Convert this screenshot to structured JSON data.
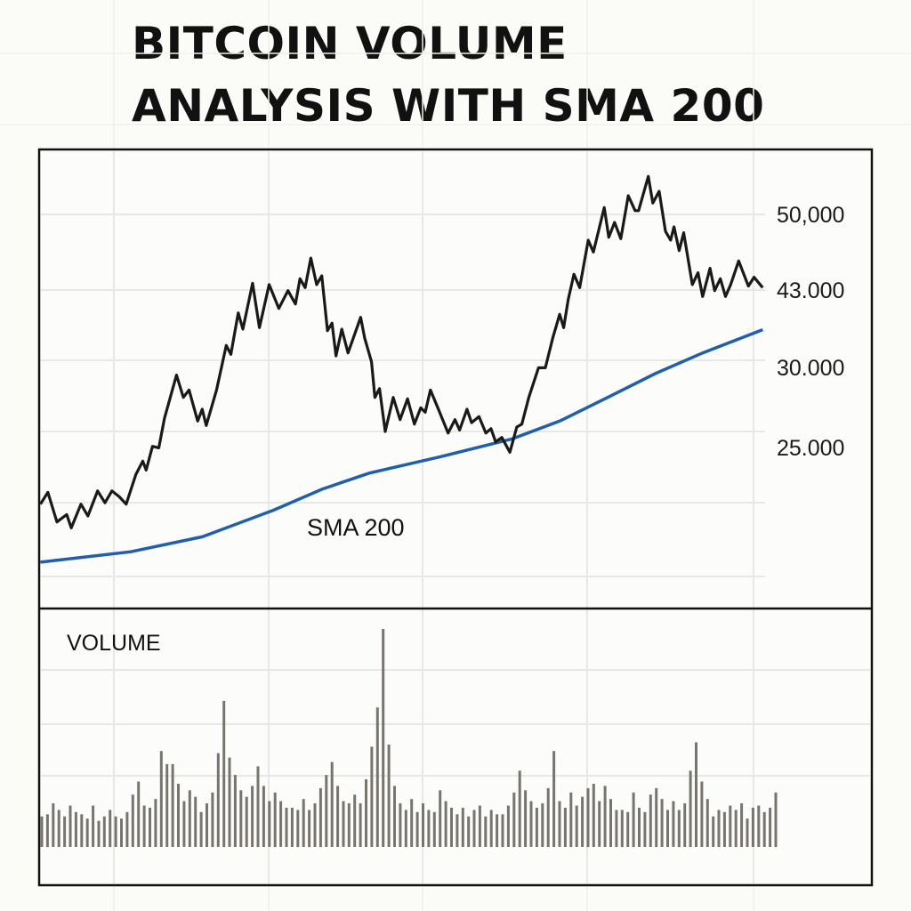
{
  "title_lines": [
    "BITCOIN VOLUME",
    "ANALYSIS WITH SMA 200"
  ],
  "chart_data": [
    {
      "type": "line",
      "panel": "price",
      "y_tick_labels": [
        "50,000",
        "43.000",
        "30.000",
        "25.000"
      ],
      "y_tick_values": [
        50000,
        43000,
        30000,
        25000
      ],
      "grid": true,
      "colors": {
        "price": "#1a1a1a",
        "sma": "#1f5fad"
      },
      "series": [
        {
          "key": "price",
          "x": [
            0,
            1.3,
            2.9,
            4.6,
            5.4,
            7.1,
            8.3,
            10,
            11.3,
            12.5,
            13.8,
            15,
            16.7,
            17.9,
            18.5,
            19.6,
            20.7,
            21.7,
            23.8,
            25,
            26,
            27.5,
            28.3,
            29,
            30.8,
            32.5,
            33.3,
            34.6,
            35.4,
            37.1,
            38.3,
            40,
            41.7,
            43.3,
            44.6,
            45.4,
            46.3,
            47.3,
            48.3,
            49.2,
            50.2,
            51,
            51.7,
            52.7,
            53.8,
            56,
            56.7,
            57.9,
            58.5,
            59.3,
            60.3,
            61.7,
            62.9,
            64.2,
            65.4,
            66.5,
            67.3,
            68.2,
            69.6,
            71.3,
            72.5,
            73.3,
            74.6,
            75.4,
            76.7,
            77.9,
            78.8,
            79.6,
            80.7,
            82.1,
            83.3,
            84.2,
            85.4,
            87.1,
            88.3,
            89.6,
            90.8,
            91.5,
            92.3,
            93.3,
            94.3,
            95.8,
            96.7,
            98.6,
            99.4,
            100.4,
            101.5,
            102.8,
            104,
            104.6,
            106.3,
            107.1,
            108.2,
            109.3,
            110.2,
            110.8,
            111.7,
            112.5,
            114,
            115,
            115.8,
            117.1,
            117.9,
            118.9,
            119.8,
            120.7,
            122.1,
            123.8,
            124.8,
            126.3
          ],
          "y": [
            21460,
            22200,
            20350,
            20810,
            19980,
            21460,
            20720,
            22290,
            21550,
            22290,
            21920,
            21460,
            23310,
            24150,
            23590,
            25070,
            24980,
            26830,
            29520,
            28130,
            28590,
            26650,
            27390,
            26370,
            28590,
            33690,
            32200,
            39160,
            36430,
            43630,
            36680,
            43500,
            39910,
            42900,
            40660,
            44050,
            43220,
            45960,
            43500,
            44320,
            36170,
            37430,
            31940,
            36430,
            32440,
            38410,
            34930,
            30940,
            28130,
            28680,
            26000,
            28130,
            26740,
            28040,
            26460,
            27480,
            27200,
            28590,
            27390,
            25900,
            26740,
            26090,
            27390,
            26550,
            26930,
            25900,
            26180,
            25350,
            25630,
            24700,
            26280,
            26460,
            28130,
            29980,
            29980,
            34930,
            38920,
            36680,
            41400,
            44460,
            43220,
            47610,
            46520,
            50630,
            47880,
            49260,
            47750,
            51730,
            50350,
            50350,
            53520,
            51050,
            52140,
            48440,
            47610,
            48850,
            46650,
            48300,
            43500,
            44600,
            41910,
            45010,
            42900,
            44050,
            41910,
            43500,
            45690,
            43360,
            44190,
            43220
          ]
        },
        {
          "key": "sma",
          "name": "SMA 200",
          "x": [
            0,
            15.8,
            28.3,
            40.8,
            49.2,
            57.5,
            70,
            82.5,
            90.8,
            99.2,
            107.5,
            115.8,
            126.3
          ],
          "y": [
            17840,
            18490,
            19420,
            21090,
            22390,
            23400,
            24430,
            25540,
            26650,
            28130,
            29610,
            32440,
            36330
          ]
        }
      ]
    },
    {
      "type": "bar",
      "panel": "volume",
      "label": "VOLUME",
      "grid": true,
      "color": "#77756e",
      "values": [
        14,
        15,
        20,
        17,
        14,
        19,
        16,
        15,
        13,
        19,
        12,
        14,
        17,
        14,
        13,
        16,
        24,
        30,
        19,
        18,
        22,
        44,
        38,
        38,
        29,
        21,
        26,
        23,
        16,
        20,
        25,
        43,
        67,
        41,
        33,
        26,
        23,
        28,
        37,
        28,
        21,
        25,
        21,
        18,
        18,
        17,
        22,
        17,
        20,
        27,
        33,
        39,
        28,
        21,
        20,
        24,
        20,
        31,
        46,
        64,
        100,
        47,
        28,
        20,
        17,
        22,
        16,
        20,
        17,
        16,
        26,
        21,
        18,
        15,
        18,
        14,
        17,
        19,
        14,
        17,
        15,
        15,
        19,
        25,
        35,
        26,
        21,
        18,
        20,
        27,
        44,
        21,
        18,
        25,
        19,
        23,
        27,
        29,
        21,
        28,
        22,
        17,
        17,
        16,
        25,
        18,
        16,
        24,
        27,
        22,
        17,
        21,
        17,
        20,
        35,
        48,
        30,
        22,
        14,
        17,
        16,
        19,
        17,
        20,
        13,
        18,
        19,
        16,
        18,
        25
      ]
    }
  ]
}
